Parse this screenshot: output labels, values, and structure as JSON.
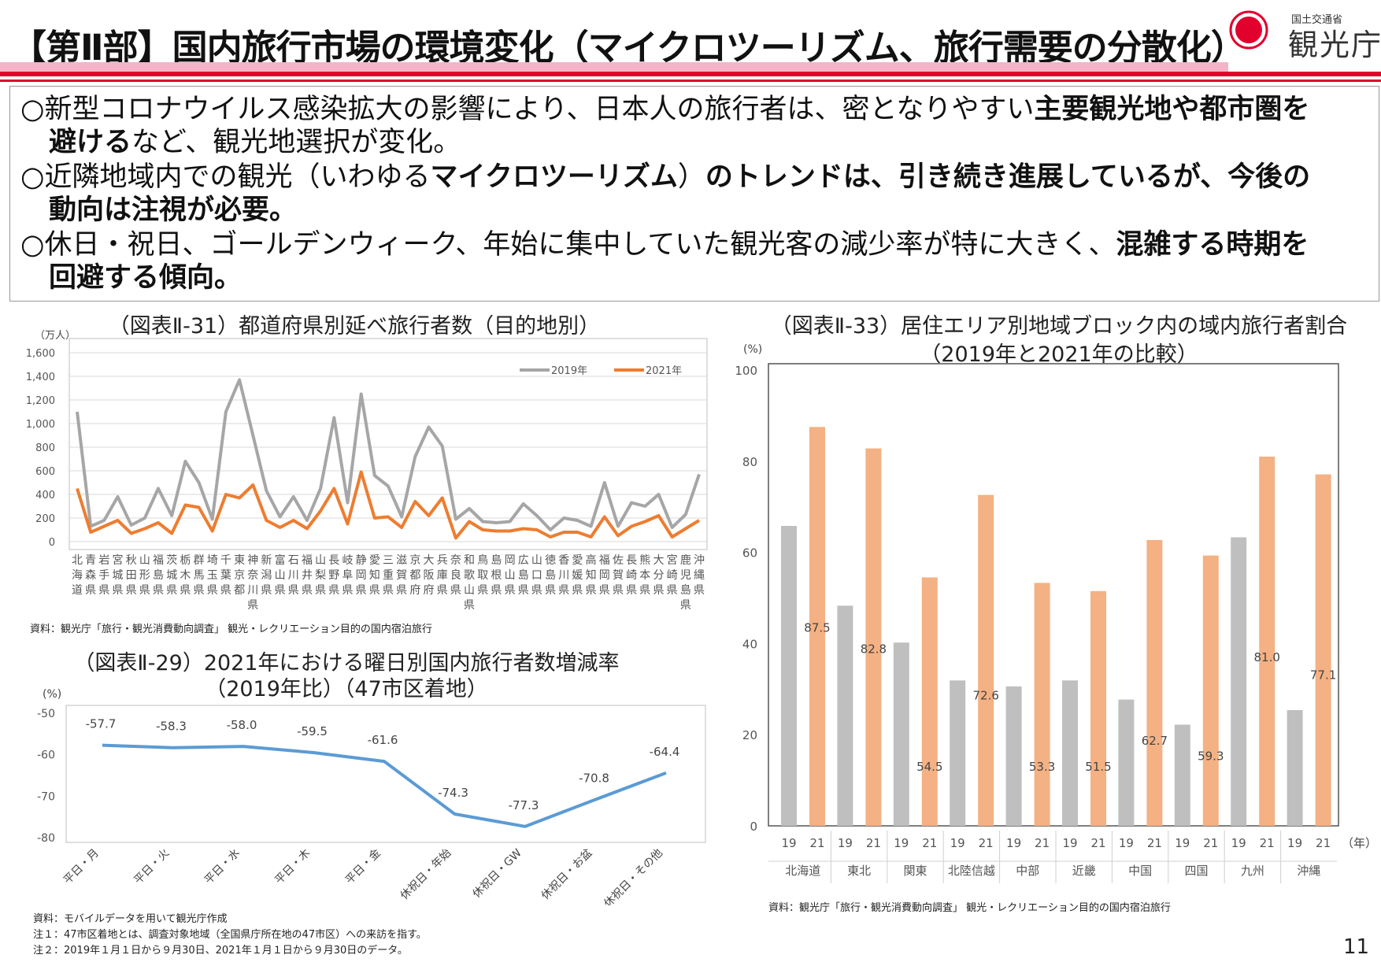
{
  "header": {
    "title": "【第Ⅱ部】国内旅行市場の環境変化（マイクロツーリズム、旅行需要の分散化）",
    "ministry": "国土交通省",
    "agency": "観光庁"
  },
  "summary": {
    "b1": {
      "l1a": "○新型コロナウイルス感染拡大の影響により、日本人の旅行者は、密となりやすい",
      "l1b": "主要観光地や都市圏を",
      "l2a": "避ける",
      "l2b": "など、観光地選択が変化。"
    },
    "b2": {
      "l1a": "○近隣地域内での観光（いわゆる",
      "l1b": "マイクロツーリズム",
      "l1c": "）",
      "l1d": "のトレンドは、引き続き進展しているが、今後の",
      "l2a": "動向は注視が必要。"
    },
    "b3": {
      "l1a": "○休日・祝日、ゴールデンウィーク、年始に集中していた観光客の減少率が特に大きく、",
      "l1b": "混雑する時期を",
      "l2a": "回避する傾向。"
    }
  },
  "chart_data": [
    {
      "id": "chart31",
      "type": "line",
      "title": "（図表Ⅱ-31）都道府県別延べ旅行者数（目的地別）",
      "ylabel": "（万人）",
      "ylim": [
        0,
        1600
      ],
      "yticks": [
        "0",
        "200",
        "400",
        "600",
        "800",
        "1,000",
        "1,200",
        "1,400",
        "1,600"
      ],
      "categories": [
        "北海道",
        "青森県",
        "岩手県",
        "宮城県",
        "秋田県",
        "山形県",
        "福島県",
        "茨城県",
        "栃木県",
        "群馬県",
        "埼玉県",
        "千葉県",
        "東京都",
        "神奈川県",
        "新潟県",
        "富山県",
        "石川県",
        "福井県",
        "山梨県",
        "長野県",
        "岐阜県",
        "静岡県",
        "愛知県",
        "三重県",
        "滋賀県",
        "京都府",
        "大阪府",
        "兵庫県",
        "奈良県",
        "和歌山県",
        "鳥取県",
        "島根県",
        "岡山県",
        "広島県",
        "山口県",
        "徳島県",
        "香川県",
        "愛媛県",
        "高知県",
        "福岡県",
        "佐賀県",
        "長崎県",
        "熊本県",
        "大分県",
        "宮崎県",
        "鹿児島県",
        "沖縄県"
      ],
      "series": [
        {
          "name": "2019年",
          "color": "#a6a6a6",
          "values": [
            1100,
            130,
            180,
            380,
            140,
            200,
            450,
            220,
            680,
            500,
            190,
            1100,
            1370,
            900,
            430,
            210,
            380,
            180,
            450,
            1050,
            330,
            1250,
            560,
            470,
            210,
            720,
            970,
            810,
            190,
            280,
            170,
            160,
            170,
            320,
            220,
            100,
            200,
            180,
            130,
            500,
            130,
            330,
            300,
            400,
            120,
            230,
            570
          ]
        },
        {
          "name": "2021年",
          "color": "#ed7d31",
          "values": [
            450,
            80,
            130,
            180,
            70,
            110,
            160,
            70,
            310,
            290,
            90,
            400,
            370,
            480,
            180,
            120,
            180,
            110,
            260,
            450,
            150,
            590,
            200,
            210,
            120,
            340,
            220,
            370,
            30,
            170,
            100,
            90,
            90,
            110,
            100,
            40,
            80,
            80,
            40,
            210,
            50,
            130,
            170,
            220,
            40,
            110,
            180
          ]
        }
      ]
    },
    {
      "id": "chart29",
      "type": "line",
      "title": "（図表Ⅱ-29）2021年における曜日別国内旅行者数増減率",
      "subtitle": "（2019年比）（47市区着地）",
      "ylabel": "(%)",
      "ylim": [
        -80,
        -50
      ],
      "yticks": [
        "-50",
        "-60",
        "-70",
        "-80"
      ],
      "categories": [
        "平日・月",
        "平日・火",
        "平日・水",
        "平日・木",
        "平日・金",
        "休祝日・年始",
        "休祝日・GW",
        "休祝日・お盆",
        "休祝日・その他"
      ],
      "series": [
        {
          "name": "増減率",
          "color": "#5b9bd5",
          "values": [
            -57.7,
            -58.3,
            -58.0,
            -59.5,
            -61.6,
            -74.3,
            -77.3,
            -70.8,
            -64.4
          ]
        }
      ],
      "labels": [
        "-57.7",
        "-58.3",
        "-58.0",
        "-59.5",
        "-61.6",
        "-74.3",
        "-77.3",
        "-70.8",
        "-64.4"
      ]
    },
    {
      "id": "chart33",
      "type": "bar",
      "title": "（図表Ⅱ-33）居住エリア別地域ブロック内の域内旅行者割合",
      "subtitle": "（2019年と2021年の比較）",
      "ylabel": "(%)",
      "xunit": "（年）",
      "ylim": [
        0,
        100
      ],
      "yticks": [
        "0",
        "20",
        "40",
        "60",
        "80",
        "100"
      ],
      "categories": [
        "北海道",
        "東北",
        "関東",
        "北陸信越",
        "中部",
        "近畿",
        "中国",
        "四国",
        "九州",
        "沖縄"
      ],
      "years": [
        "19",
        "21"
      ],
      "series": [
        {
          "name": "2019",
          "color": "#bfbfbf",
          "values": [
            65.8,
            48.3,
            40.2,
            31.9,
            30.6,
            31.9,
            27.7,
            22.2,
            63.3,
            25.4
          ]
        },
        {
          "name": "2021",
          "color": "#f4b183",
          "values": [
            87.5,
            82.8,
            54.5,
            72.6,
            53.3,
            51.5,
            62.7,
            59.3,
            81.0,
            77.1
          ]
        }
      ],
      "labels": [
        "87.5",
        "82.8",
        "54.5",
        "72.6",
        "53.3",
        "51.5",
        "62.7",
        "59.3",
        "81.0",
        "77.1"
      ]
    }
  ],
  "sources": {
    "c31": "資料：観光庁「旅行・観光消費動向調査」 観光・レクリエーション目的の国内宿泊旅行",
    "c29_1": "資料：モバイルデータを用いて観光庁作成",
    "c29_2": "注１：47市区着地とは、調査対象地域（全国県庁所在地の47市区）への来訪を指す。",
    "c29_3": "注２：2019年１月１日から９月30日、2021年１月１日から９月30日のデータ。",
    "c33": "資料：観光庁「旅行・観光消費動向調査」 観光・レクリエーション目的の国内宿泊旅行"
  },
  "page_number": "11"
}
